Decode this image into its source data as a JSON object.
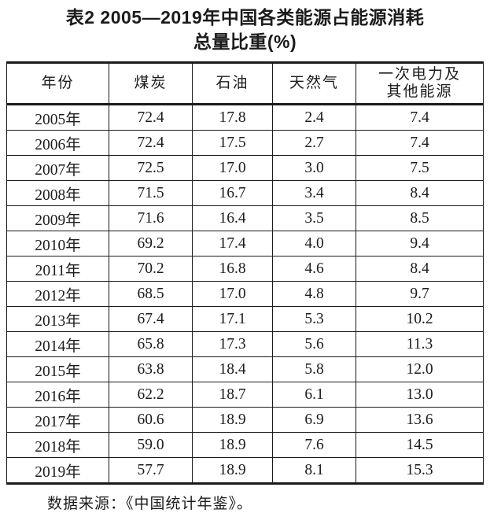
{
  "page": {
    "background": "#ffffff",
    "text_color": "#1c1c1c",
    "rule_color": "#1a1a1a"
  },
  "title": {
    "line1": "表2 2005—2019年中国各类能源占能源消耗",
    "line2": "总量比重(%)"
  },
  "table": {
    "columns": [
      "年份",
      "煤炭",
      "石油",
      "天然气",
      "一次电力及\n其他能源"
    ],
    "rows": [
      {
        "year": "2005年",
        "values": [
          "72.4",
          "17.8",
          "2.4",
          "7.4"
        ]
      },
      {
        "year": "2006年",
        "values": [
          "72.4",
          "17.5",
          "2.7",
          "7.4"
        ]
      },
      {
        "year": "2007年",
        "values": [
          "72.5",
          "17.0",
          "3.0",
          "7.5"
        ]
      },
      {
        "year": "2008年",
        "values": [
          "71.5",
          "16.7",
          "3.4",
          "8.4"
        ]
      },
      {
        "year": "2009年",
        "values": [
          "71.6",
          "16.4",
          "3.5",
          "8.5"
        ]
      },
      {
        "year": "2010年",
        "values": [
          "69.2",
          "17.4",
          "4.0",
          "9.4"
        ]
      },
      {
        "year": "2011年",
        "values": [
          "70.2",
          "16.8",
          "4.6",
          "8.4"
        ]
      },
      {
        "year": "2012年",
        "values": [
          "68.5",
          "17.0",
          "4.8",
          "9.7"
        ]
      },
      {
        "year": "2013年",
        "values": [
          "67.4",
          "17.1",
          "5.3",
          "10.2"
        ]
      },
      {
        "year": "2014年",
        "values": [
          "65.8",
          "17.3",
          "5.6",
          "11.3"
        ]
      },
      {
        "year": "2015年",
        "values": [
          "63.8",
          "18.4",
          "5.8",
          "12.0"
        ]
      },
      {
        "year": "2016年",
        "values": [
          "62.2",
          "18.7",
          "6.1",
          "13.0"
        ]
      },
      {
        "year": "2017年",
        "values": [
          "60.6",
          "18.9",
          "6.9",
          "13.6"
        ]
      },
      {
        "year": "2018年",
        "values": [
          "59.0",
          "18.9",
          "7.6",
          "14.5"
        ]
      },
      {
        "year": "2019年",
        "values": [
          "57.7",
          "18.9",
          "8.1",
          "15.3"
        ]
      }
    ]
  },
  "footer": {
    "source": "数据来源：《中国统计年鉴》。"
  }
}
